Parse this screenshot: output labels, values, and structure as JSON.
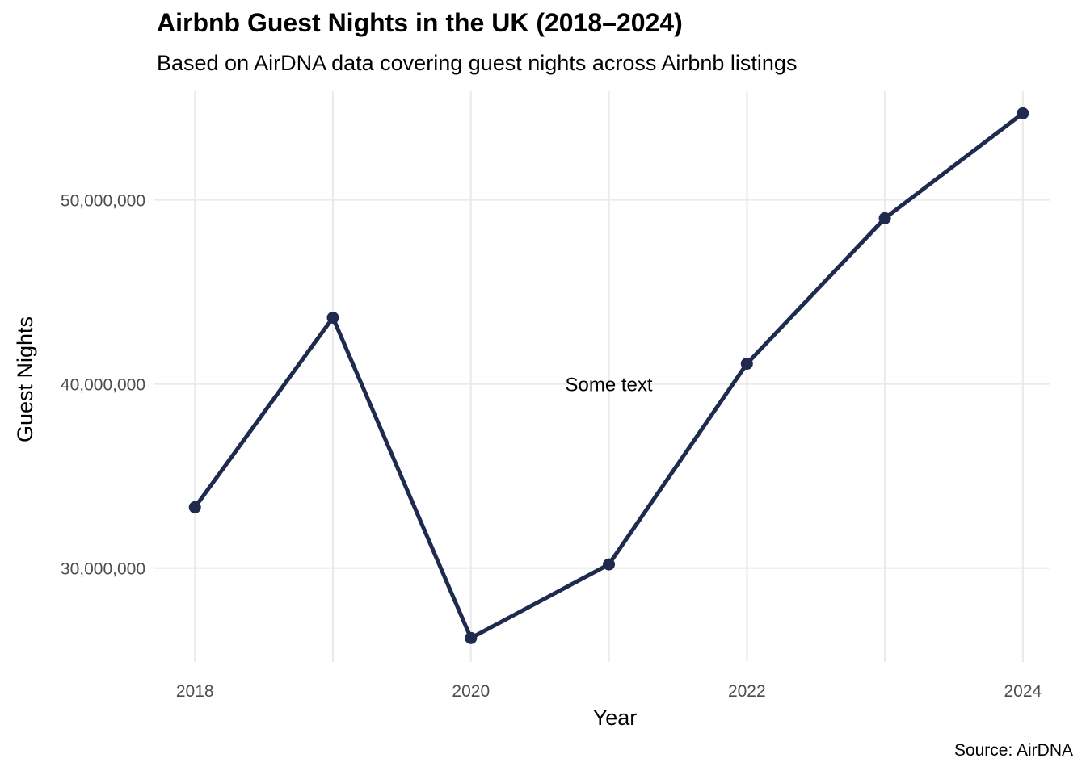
{
  "chart_data": {
    "type": "line",
    "title": "Airbnb Guest Nights in the UK (2018–2024)",
    "subtitle": "Based on AirDNA data covering guest nights across Airbnb listings",
    "caption": "Source: AirDNA",
    "xlabel": "Year",
    "ylabel": "Guest Nights",
    "x": [
      2018,
      2019,
      2020,
      2021,
      2022,
      2023,
      2024
    ],
    "series": [
      {
        "values": [
          33300000,
          43600000,
          26200000,
          30200000,
          41100000,
          49000000,
          54700000
        ]
      }
    ],
    "xlim": [
      2017.7,
      2024.2
    ],
    "ylim": [
      24900000,
      55900000
    ],
    "x_ticks": [
      2018,
      2020,
      2022,
      2024
    ],
    "x_tick_labels": [
      "2018",
      "2020",
      "2022",
      "2024"
    ],
    "y_ticks": [
      30000000,
      40000000,
      50000000
    ],
    "y_tick_labels": [
      "30,000,000",
      "40,000,000",
      "50,000,000"
    ],
    "annotations": [
      {
        "text": "Some text",
        "x": 2021,
        "y": 40000000
      }
    ],
    "grid": true,
    "colors": {
      "line": "#1f2a4f",
      "grid": "#ebebeb"
    }
  }
}
